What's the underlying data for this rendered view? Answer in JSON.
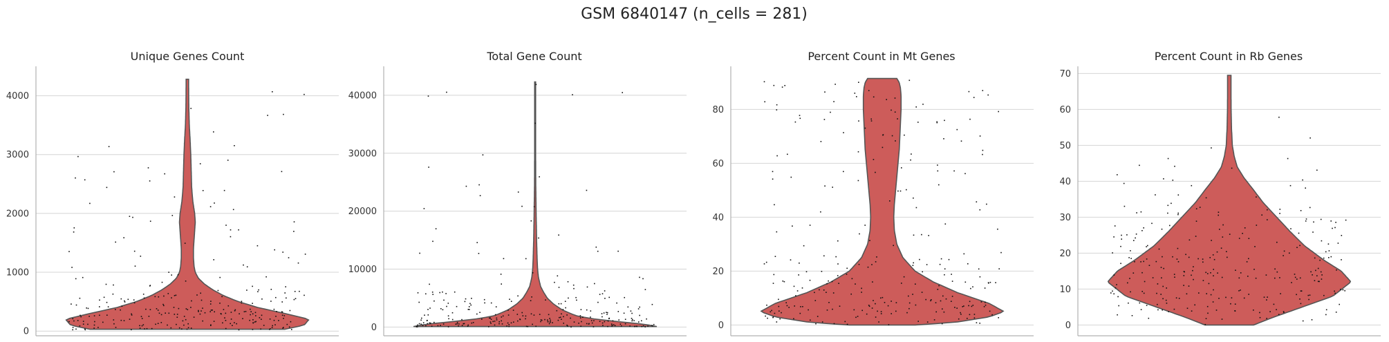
{
  "figure_title": "GSM 6840147 (n_cells = 281)",
  "colors": {
    "violin_fill": "#cd5c5a",
    "violin_edge": "#555555",
    "points": "#111111",
    "grid": "#d4d4d4"
  },
  "chart_data": [
    {
      "type": "violin",
      "title": "Unique Genes Count",
      "xlabel": "",
      "ylabel": "",
      "ylim": [
        -80,
        4500
      ],
      "yticks": [
        0,
        1000,
        2000,
        3000,
        4000
      ],
      "grid": "horizontal",
      "range": [
        30,
        4280
      ],
      "profile": [
        [
          30,
          0.8
        ],
        [
          100,
          0.96
        ],
        [
          200,
          1.0
        ],
        [
          300,
          0.8
        ],
        [
          400,
          0.58
        ],
        [
          500,
          0.42
        ],
        [
          600,
          0.3
        ],
        [
          700,
          0.21
        ],
        [
          800,
          0.14
        ],
        [
          900,
          0.09
        ],
        [
          1000,
          0.065
        ],
        [
          1100,
          0.055
        ],
        [
          1250,
          0.05
        ],
        [
          1400,
          0.05
        ],
        [
          1550,
          0.055
        ],
        [
          1700,
          0.06
        ],
        [
          1850,
          0.065
        ],
        [
          2000,
          0.06
        ],
        [
          2200,
          0.045
        ],
        [
          2450,
          0.035
        ],
        [
          2700,
          0.032
        ],
        [
          3000,
          0.028
        ],
        [
          3200,
          0.024
        ],
        [
          3500,
          0.016
        ],
        [
          3800,
          0.012
        ],
        [
          4000,
          0.011
        ],
        [
          4280,
          0.01
        ]
      ],
      "n_points": 281
    },
    {
      "type": "violin",
      "title": "Total Gene Count",
      "xlabel": "",
      "ylabel": "",
      "ylim": [
        -1500,
        45000
      ],
      "yticks": [
        0,
        10000,
        20000,
        30000,
        40000
      ],
      "grid": "horizontal",
      "range": [
        100,
        42300
      ],
      "profile": [
        [
          100,
          1.0
        ],
        [
          500,
          0.9
        ],
        [
          1000,
          0.65
        ],
        [
          1500,
          0.45
        ],
        [
          2000,
          0.33
        ],
        [
          3000,
          0.22
        ],
        [
          4000,
          0.15
        ],
        [
          5000,
          0.1
        ],
        [
          6000,
          0.07
        ],
        [
          7000,
          0.045
        ],
        [
          8500,
          0.028
        ],
        [
          10000,
          0.02
        ],
        [
          12000,
          0.016
        ],
        [
          15000,
          0.012
        ],
        [
          20000,
          0.008
        ],
        [
          25000,
          0.005
        ],
        [
          30000,
          0.004
        ],
        [
          36000,
          0.004
        ],
        [
          42300,
          0.004
        ]
      ],
      "n_points": 281
    },
    {
      "type": "violin",
      "title": "Percent Count in Mt Genes",
      "xlabel": "",
      "ylabel": "",
      "ylim": [
        -4,
        96
      ],
      "yticks": [
        0,
        20,
        40,
        60,
        80
      ],
      "grid": "horizontal",
      "range": [
        0,
        91.5
      ],
      "profile": [
        [
          0,
          0.27
        ],
        [
          1,
          0.6
        ],
        [
          3,
          0.88
        ],
        [
          5,
          1.0
        ],
        [
          8,
          0.88
        ],
        [
          12,
          0.62
        ],
        [
          16,
          0.42
        ],
        [
          20,
          0.27
        ],
        [
          25,
          0.17
        ],
        [
          30,
          0.12
        ],
        [
          35,
          0.1
        ],
        [
          40,
          0.095
        ],
        [
          45,
          0.1
        ],
        [
          50,
          0.11
        ],
        [
          55,
          0.12
        ],
        [
          60,
          0.13
        ],
        [
          65,
          0.14
        ],
        [
          70,
          0.145
        ],
        [
          75,
          0.15
        ],
        [
          80,
          0.155
        ],
        [
          85,
          0.155
        ],
        [
          88,
          0.15
        ],
        [
          90,
          0.14
        ],
        [
          91.5,
          0.12
        ]
      ],
      "n_points": 281
    },
    {
      "type": "violin",
      "title": "Percent Count in Rb Genes",
      "xlabel": "",
      "ylabel": "",
      "ylim": [
        -3,
        72
      ],
      "yticks": [
        0,
        10,
        20,
        30,
        40,
        50,
        60,
        70
      ],
      "grid": "horizontal",
      "range": [
        0,
        69.5
      ],
      "profile": [
        [
          0,
          0.2
        ],
        [
          2,
          0.35
        ],
        [
          5,
          0.6
        ],
        [
          8,
          0.85
        ],
        [
          12,
          1.0
        ],
        [
          15,
          0.92
        ],
        [
          18,
          0.78
        ],
        [
          22,
          0.62
        ],
        [
          26,
          0.5
        ],
        [
          30,
          0.39
        ],
        [
          34,
          0.28
        ],
        [
          38,
          0.19
        ],
        [
          41,
          0.12
        ],
        [
          44,
          0.065
        ],
        [
          47,
          0.04
        ],
        [
          50,
          0.025
        ],
        [
          55,
          0.018
        ],
        [
          60,
          0.015
        ],
        [
          65,
          0.014
        ],
        [
          69.5,
          0.014
        ]
      ],
      "n_points": 281
    }
  ]
}
